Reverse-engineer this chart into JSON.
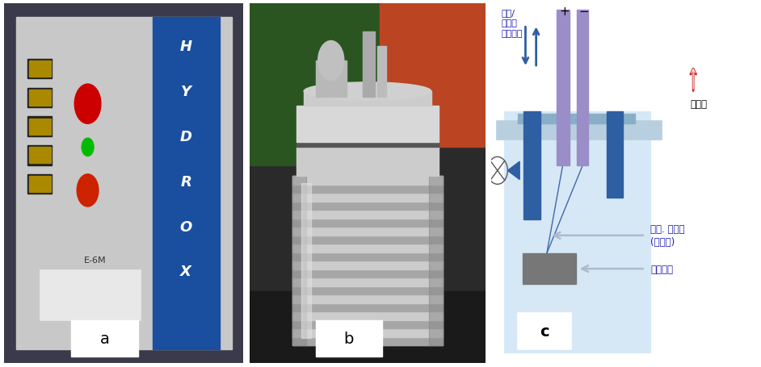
{
  "fig_width": 9.42,
  "fig_height": 4.56,
  "dpi": 100,
  "bg_color": "#ffffff",
  "panel_a_label": "a",
  "panel_b_label": "b",
  "panel_c_label": "c",
  "diagram": {
    "bg_light_blue": "#d6e8f5",
    "plate_color": "#b8cfe0",
    "plate_dark": "#8aaec8",
    "purple": "#9B8DC8",
    "dark_blue": "#2E5FA3",
    "gray_box": "#808080",
    "arrow_blue": "#2E5FA3",
    "circle_stroke": "#000000",
    "text_red": "#cc2222",
    "text_blue": "#1a1aaa",
    "text_black": "#000000",
    "label_sanso": "산소/\n배가스\n유출입구",
    "label_pressure": "압력계",
    "label_nichrome": "니켈. 크롬선\n(점화선)",
    "label_ignite": "발화용기",
    "label_plus": "+",
    "label_minus": "−"
  }
}
